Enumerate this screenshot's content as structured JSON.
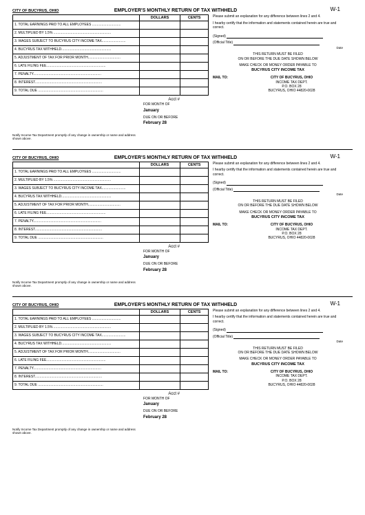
{
  "forms": [
    0,
    1,
    2
  ],
  "header": {
    "city": "CITY OF BUCYRUS, OHIO",
    "title": "EMPLOYER'S MONTHLY RETURN OF TAX WITHHELD",
    "form_code": "W-1"
  },
  "table": {
    "col_dollars": "DOLLARS",
    "col_cents": "CENTS",
    "rows": [
      "1. TOTAL EARNINGS PAID TO ALL EMPLOYEES ..............................",
      "2. MULTIPLIED BY 1.5% ............................................................",
      "3. WAGES SUBJECT TO BUCYRUS CITY INCOME TAX.........................",
      "4. BUCYRUS TAX WITHHELD....................................................",
      "5. ADJUSTMENT OF TAX FOR PRIOR MONTH..................................",
      "6. LATE FILING FEE..............................................................",
      "7. PENALTY.......................................................................",
      "8. INTEREST......................................................................",
      "9. TOTAL DUE ...................................................................."
    ]
  },
  "acct_label": "Acct #",
  "month": {
    "for_label": "FOR MONTH OF",
    "for_value": "January",
    "due_label": "DUE ON OR BEFORE",
    "due_value": "February 28"
  },
  "notify": "Notify Income Tax Department promptly of any change in ownership or name and address shown above.",
  "right": {
    "explain": "Please submit an explanation for any difference between lines 2 and 4.",
    "certify": "I hearby certify that the information and statements contained herein are true and correct.",
    "signed": "(Signed)",
    "official_title": "(Official Title)",
    "date": "Date",
    "filed1": "THIS RETURN MUST BE FILED",
    "filed2": "ON OR BEFORE THE DUE DATE SHOWN BELOW",
    "payable": "MAKE CHECK OR MONEY ORDER PAYABLE TO",
    "payto": "BUCYRUS CITY INCOME TAX",
    "mail_label": "MAIL TO:",
    "mail_addr1": "CITY OF BUCYRUS, OHIO",
    "mail_addr2": "INCOME TAX DEPT.",
    "mail_addr3": "P.O. BOX 28",
    "mail_addr4": "BUCYRUS, OHIO 44820-0028"
  }
}
